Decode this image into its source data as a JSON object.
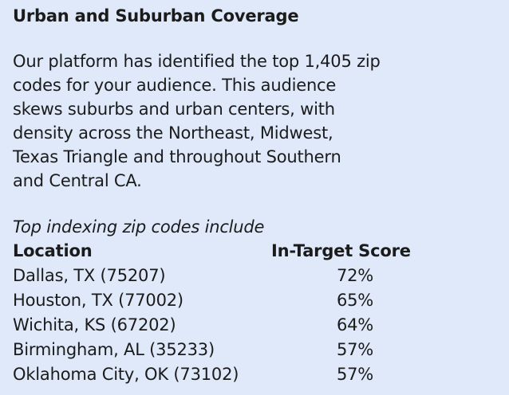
{
  "header": {
    "title": "Urban and Suburban Coverage"
  },
  "paragraph": {
    "lines": [
      "Our platform has identified the top 1,405 zip",
      "codes for your audience. This audience",
      "skews suburbs and urban centers, with",
      "density across the Northeast, Midwest,",
      "Texas Triangle and throughout Southern",
      "and Central CA."
    ]
  },
  "intro": "Top indexing zip codes include",
  "table": {
    "columns": [
      "Location",
      "In-Target Score"
    ],
    "rows": [
      [
        "Dallas, TX (75207)",
        "72%"
      ],
      [
        "Houston, TX (77002)",
        "65%"
      ],
      [
        "Wichita, KS (67202)",
        "64%"
      ],
      [
        "Birmingham, AL (35233)",
        "57%"
      ],
      [
        "Oklahoma City, OK (73102)",
        "57%"
      ]
    ]
  }
}
